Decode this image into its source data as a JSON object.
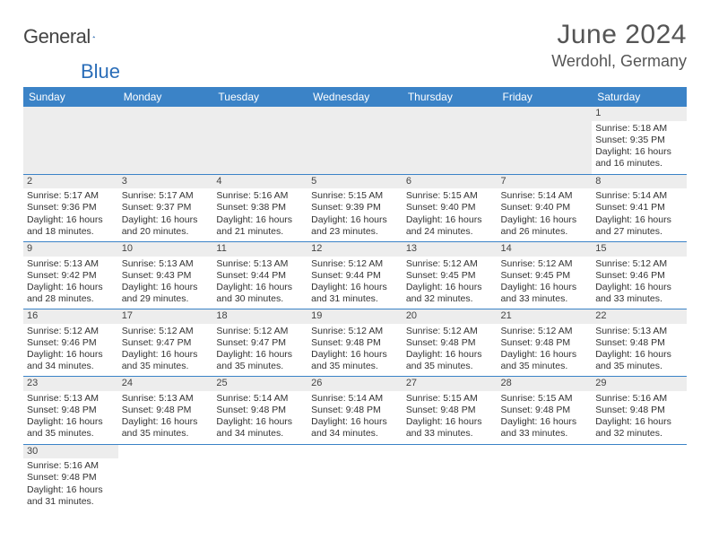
{
  "brand": {
    "word1": "General",
    "word2": "Blue"
  },
  "title": "June 2024",
  "location": "Werdohl, Germany",
  "colors": {
    "header_bg": "#3b83c7",
    "header_fg": "#ffffff",
    "daynum_bg": "#ededed",
    "rule": "#3b83c7",
    "text": "#333333",
    "title": "#555555"
  },
  "day_headers": [
    "Sunday",
    "Monday",
    "Tuesday",
    "Wednesday",
    "Thursday",
    "Friday",
    "Saturday"
  ],
  "weeks": [
    [
      null,
      null,
      null,
      null,
      null,
      null,
      {
        "n": "1",
        "sr": "Sunrise: 5:18 AM",
        "ss": "Sunset: 9:35 PM",
        "dl": "Daylight: 16 hours and 16 minutes."
      }
    ],
    [
      {
        "n": "2",
        "sr": "Sunrise: 5:17 AM",
        "ss": "Sunset: 9:36 PM",
        "dl": "Daylight: 16 hours and 18 minutes."
      },
      {
        "n": "3",
        "sr": "Sunrise: 5:17 AM",
        "ss": "Sunset: 9:37 PM",
        "dl": "Daylight: 16 hours and 20 minutes."
      },
      {
        "n": "4",
        "sr": "Sunrise: 5:16 AM",
        "ss": "Sunset: 9:38 PM",
        "dl": "Daylight: 16 hours and 21 minutes."
      },
      {
        "n": "5",
        "sr": "Sunrise: 5:15 AM",
        "ss": "Sunset: 9:39 PM",
        "dl": "Daylight: 16 hours and 23 minutes."
      },
      {
        "n": "6",
        "sr": "Sunrise: 5:15 AM",
        "ss": "Sunset: 9:40 PM",
        "dl": "Daylight: 16 hours and 24 minutes."
      },
      {
        "n": "7",
        "sr": "Sunrise: 5:14 AM",
        "ss": "Sunset: 9:40 PM",
        "dl": "Daylight: 16 hours and 26 minutes."
      },
      {
        "n": "8",
        "sr": "Sunrise: 5:14 AM",
        "ss": "Sunset: 9:41 PM",
        "dl": "Daylight: 16 hours and 27 minutes."
      }
    ],
    [
      {
        "n": "9",
        "sr": "Sunrise: 5:13 AM",
        "ss": "Sunset: 9:42 PM",
        "dl": "Daylight: 16 hours and 28 minutes."
      },
      {
        "n": "10",
        "sr": "Sunrise: 5:13 AM",
        "ss": "Sunset: 9:43 PM",
        "dl": "Daylight: 16 hours and 29 minutes."
      },
      {
        "n": "11",
        "sr": "Sunrise: 5:13 AM",
        "ss": "Sunset: 9:44 PM",
        "dl": "Daylight: 16 hours and 30 minutes."
      },
      {
        "n": "12",
        "sr": "Sunrise: 5:12 AM",
        "ss": "Sunset: 9:44 PM",
        "dl": "Daylight: 16 hours and 31 minutes."
      },
      {
        "n": "13",
        "sr": "Sunrise: 5:12 AM",
        "ss": "Sunset: 9:45 PM",
        "dl": "Daylight: 16 hours and 32 minutes."
      },
      {
        "n": "14",
        "sr": "Sunrise: 5:12 AM",
        "ss": "Sunset: 9:45 PM",
        "dl": "Daylight: 16 hours and 33 minutes."
      },
      {
        "n": "15",
        "sr": "Sunrise: 5:12 AM",
        "ss": "Sunset: 9:46 PM",
        "dl": "Daylight: 16 hours and 33 minutes."
      }
    ],
    [
      {
        "n": "16",
        "sr": "Sunrise: 5:12 AM",
        "ss": "Sunset: 9:46 PM",
        "dl": "Daylight: 16 hours and 34 minutes."
      },
      {
        "n": "17",
        "sr": "Sunrise: 5:12 AM",
        "ss": "Sunset: 9:47 PM",
        "dl": "Daylight: 16 hours and 35 minutes."
      },
      {
        "n": "18",
        "sr": "Sunrise: 5:12 AM",
        "ss": "Sunset: 9:47 PM",
        "dl": "Daylight: 16 hours and 35 minutes."
      },
      {
        "n": "19",
        "sr": "Sunrise: 5:12 AM",
        "ss": "Sunset: 9:48 PM",
        "dl": "Daylight: 16 hours and 35 minutes."
      },
      {
        "n": "20",
        "sr": "Sunrise: 5:12 AM",
        "ss": "Sunset: 9:48 PM",
        "dl": "Daylight: 16 hours and 35 minutes."
      },
      {
        "n": "21",
        "sr": "Sunrise: 5:12 AM",
        "ss": "Sunset: 9:48 PM",
        "dl": "Daylight: 16 hours and 35 minutes."
      },
      {
        "n": "22",
        "sr": "Sunrise: 5:13 AM",
        "ss": "Sunset: 9:48 PM",
        "dl": "Daylight: 16 hours and 35 minutes."
      }
    ],
    [
      {
        "n": "23",
        "sr": "Sunrise: 5:13 AM",
        "ss": "Sunset: 9:48 PM",
        "dl": "Daylight: 16 hours and 35 minutes."
      },
      {
        "n": "24",
        "sr": "Sunrise: 5:13 AM",
        "ss": "Sunset: 9:48 PM",
        "dl": "Daylight: 16 hours and 35 minutes."
      },
      {
        "n": "25",
        "sr": "Sunrise: 5:14 AM",
        "ss": "Sunset: 9:48 PM",
        "dl": "Daylight: 16 hours and 34 minutes."
      },
      {
        "n": "26",
        "sr": "Sunrise: 5:14 AM",
        "ss": "Sunset: 9:48 PM",
        "dl": "Daylight: 16 hours and 34 minutes."
      },
      {
        "n": "27",
        "sr": "Sunrise: 5:15 AM",
        "ss": "Sunset: 9:48 PM",
        "dl": "Daylight: 16 hours and 33 minutes."
      },
      {
        "n": "28",
        "sr": "Sunrise: 5:15 AM",
        "ss": "Sunset: 9:48 PM",
        "dl": "Daylight: 16 hours and 33 minutes."
      },
      {
        "n": "29",
        "sr": "Sunrise: 5:16 AM",
        "ss": "Sunset: 9:48 PM",
        "dl": "Daylight: 16 hours and 32 minutes."
      }
    ],
    [
      {
        "n": "30",
        "sr": "Sunrise: 5:16 AM",
        "ss": "Sunset: 9:48 PM",
        "dl": "Daylight: 16 hours and 31 minutes."
      },
      null,
      null,
      null,
      null,
      null,
      null
    ]
  ]
}
